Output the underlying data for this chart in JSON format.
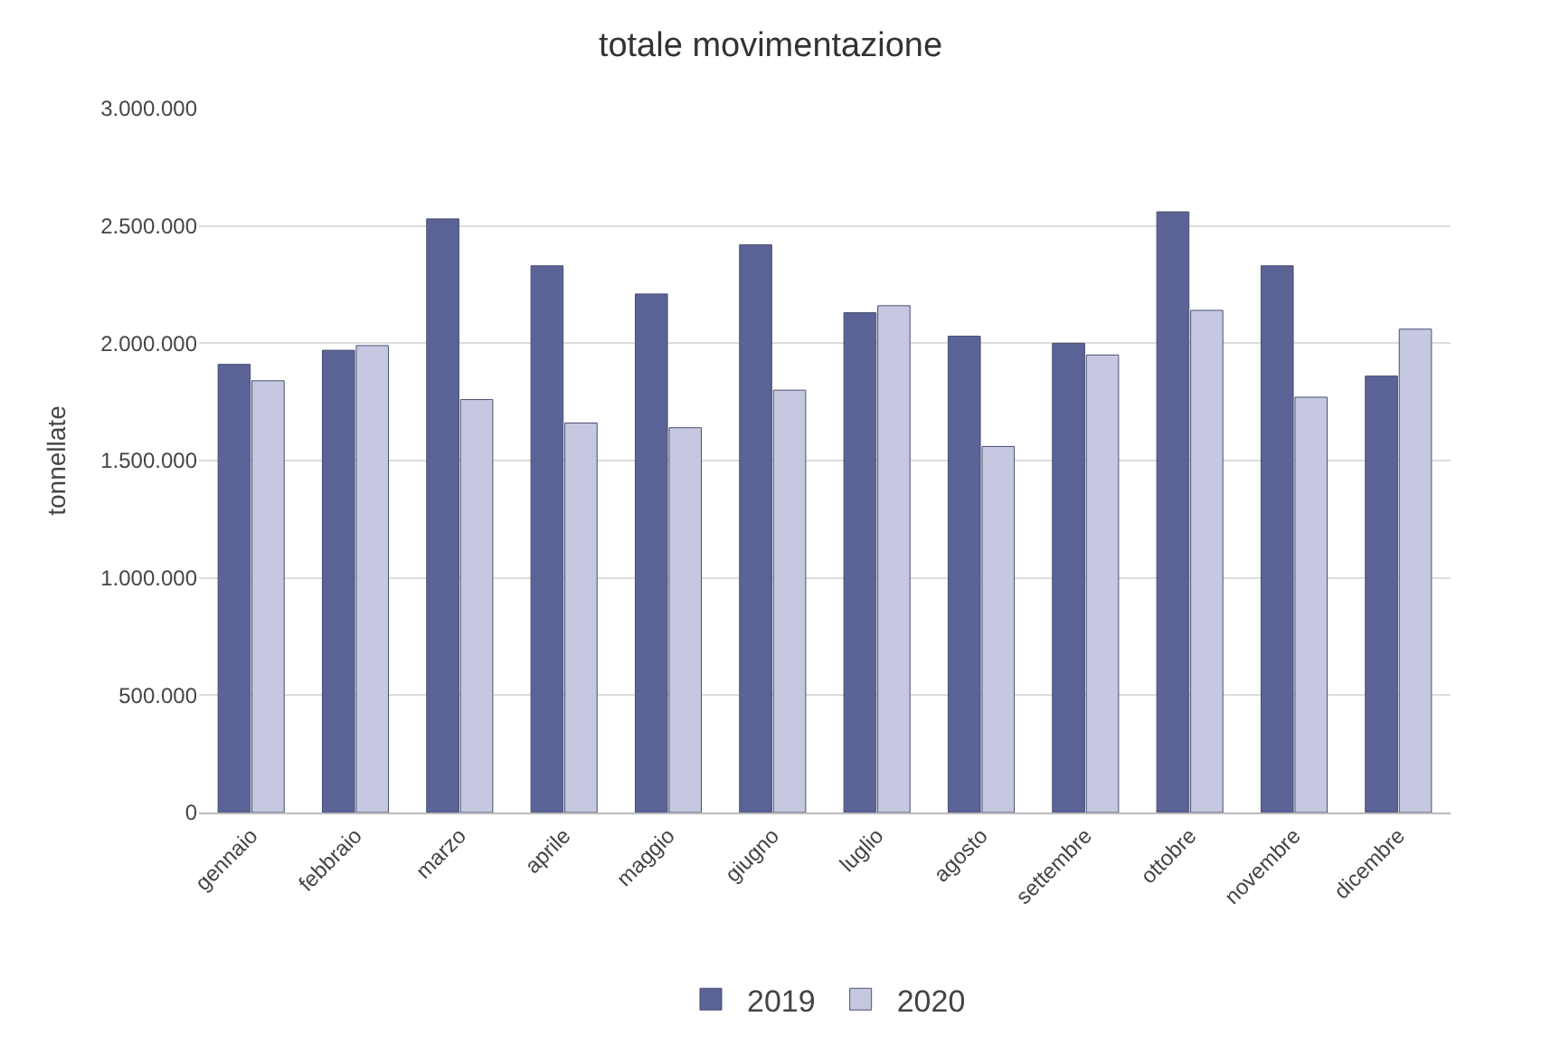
{
  "chart_data": {
    "type": "bar",
    "title": "totale movimentazione",
    "ylabel": "tonnellate",
    "categories": [
      "gennaio",
      "febbraio",
      "marzo",
      "aprile",
      "maggio",
      "giugno",
      "luglio",
      "agosto",
      "settembre",
      "ottobre",
      "novembre",
      "dicembre"
    ],
    "series": [
      {
        "name": "2019",
        "color": "#5b6396",
        "values": [
          1910000,
          1970000,
          2530000,
          2330000,
          2210000,
          2420000,
          2130000,
          2030000,
          2000000,
          2560000,
          2330000,
          1860000
        ]
      },
      {
        "name": "2020",
        "color": "#c5c8e0",
        "values": [
          1840000,
          1990000,
          1760000,
          1660000,
          1640000,
          1800000,
          2160000,
          1560000,
          1950000,
          2140000,
          1770000,
          2060000
        ]
      }
    ],
    "ylim": [
      0,
      3000000
    ],
    "yticks": [
      {
        "value": 0,
        "label": "0"
      },
      {
        "value": 500000,
        "label": "500.000"
      },
      {
        "value": 1000000,
        "label": "1.000.000"
      },
      {
        "value": 1500000,
        "label": "1.500.000"
      },
      {
        "value": 2000000,
        "label": "2.000.000"
      },
      {
        "value": 2500000,
        "label": "2.500.000"
      },
      {
        "value": 3000000,
        "label": "3.000.000"
      }
    ],
    "grid": "y",
    "legend": "bottom"
  }
}
